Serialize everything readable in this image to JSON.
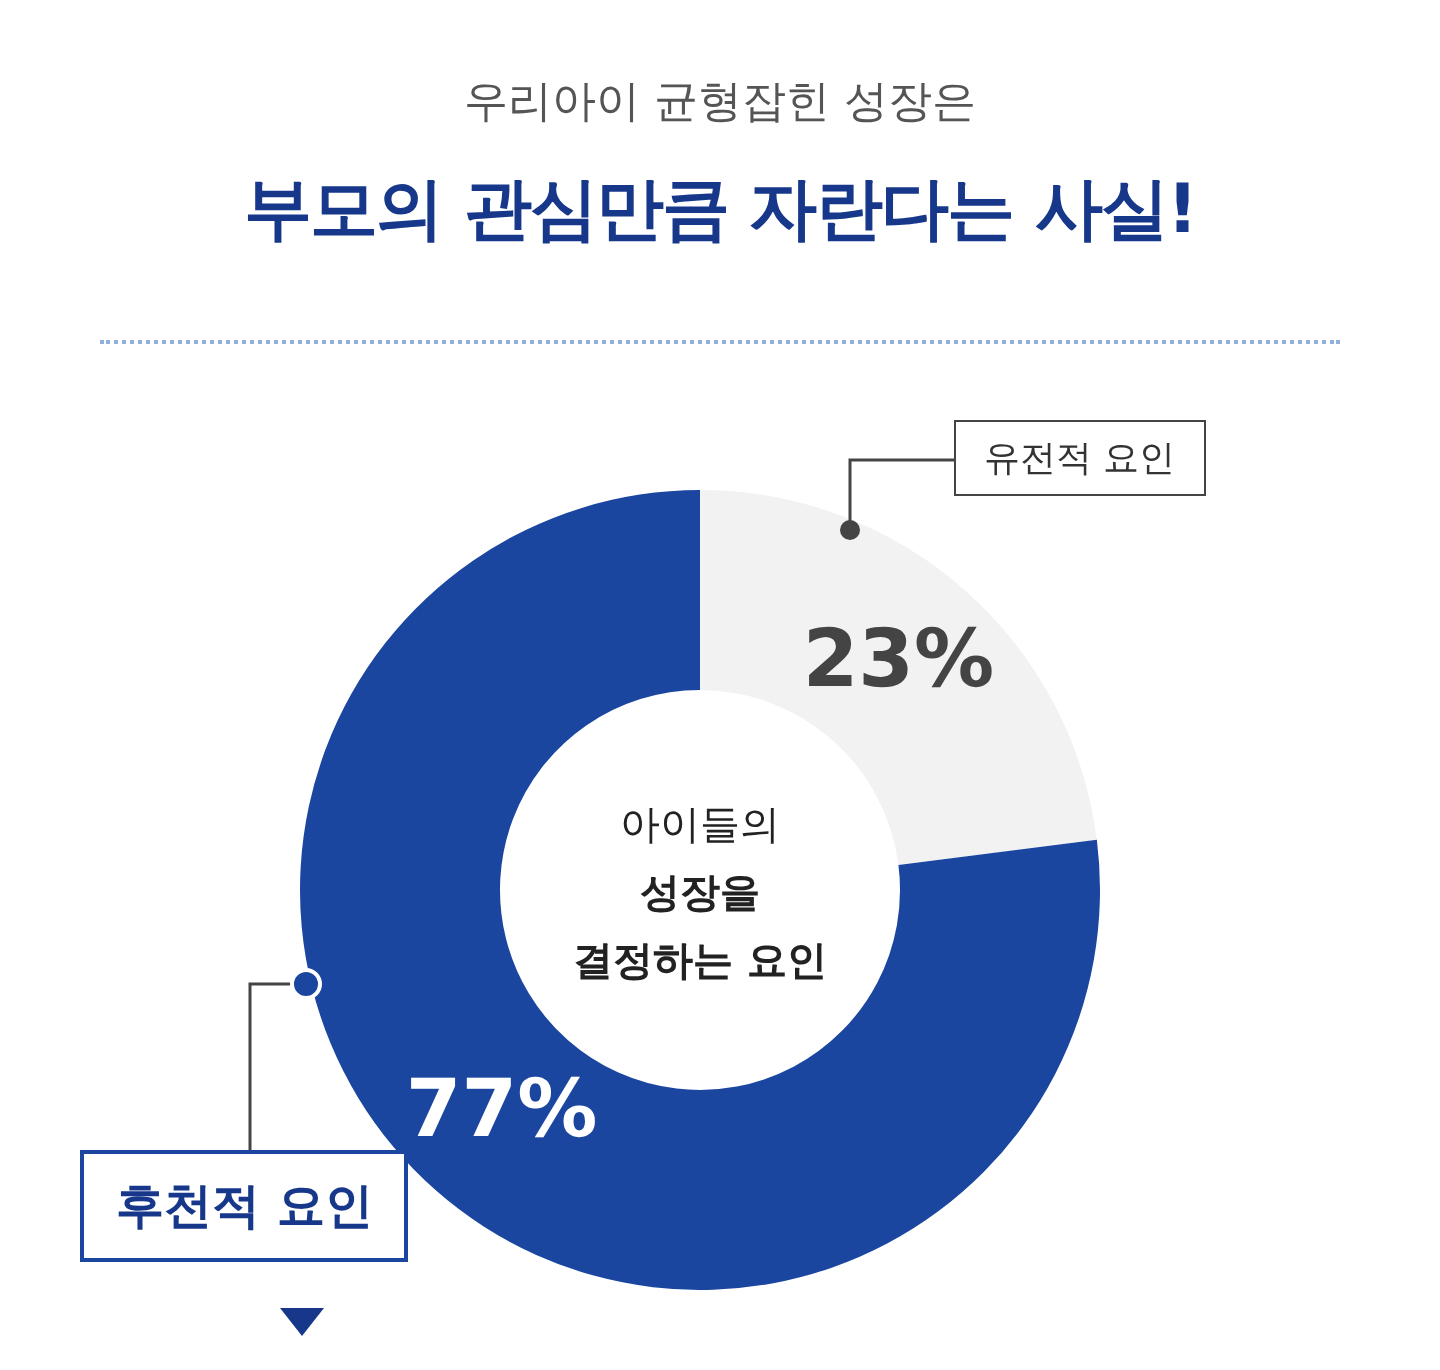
{
  "chart_data": {
    "type": "donut",
    "subtitle": "우리아이 균형잡힌 성장은",
    "title": "부모의 관심만큼 자란다는 사실!",
    "categories": [
      "유전적 요인",
      "후천적 요인"
    ],
    "values": [
      23,
      77
    ],
    "colors": [
      "#f2f2f2",
      "#1b46a0"
    ],
    "value_labels": [
      "23%",
      "77%"
    ],
    "annotations": [
      "아이들의",
      "성장을",
      "결정하는 요인"
    ],
    "legend": false
  }
}
